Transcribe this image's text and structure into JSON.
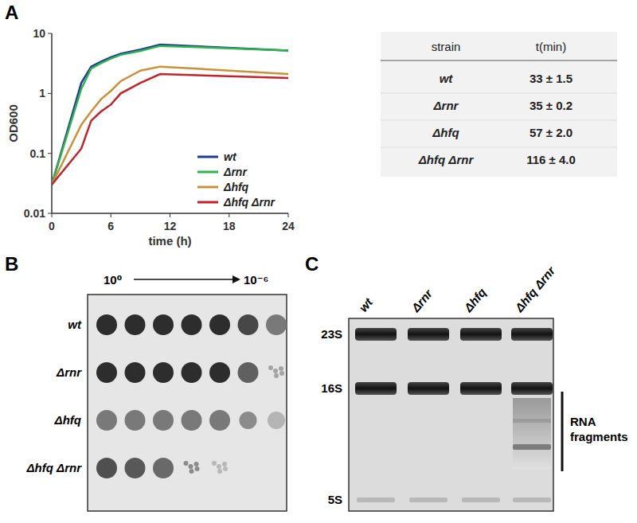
{
  "chart_data": {
    "type": "line",
    "x_label": "time (h)",
    "y_label": "OD600",
    "x": [
      0,
      3,
      4,
      5,
      6,
      7,
      9,
      11,
      24
    ],
    "series": [
      {
        "name": "wt",
        "color": "#1f3a9e",
        "values": [
          0.03,
          1.5,
          2.8,
          3.4,
          4.0,
          4.6,
          5.4,
          6.5,
          5.2
        ]
      },
      {
        "name": "Δrnr",
        "color": "#2fb34a",
        "values": [
          0.03,
          1.2,
          2.6,
          3.2,
          3.8,
          4.4,
          5.1,
          6.2,
          5.2
        ]
      },
      {
        "name": "Δhfq",
        "color": "#c8913a",
        "values": [
          0.03,
          0.3,
          0.5,
          0.8,
          1.1,
          1.6,
          2.4,
          2.8,
          2.1
        ]
      },
      {
        "name": "Δhfq Δrnr",
        "color": "#c0232a",
        "values": [
          0.03,
          0.12,
          0.35,
          0.5,
          0.65,
          1.0,
          1.5,
          2.1,
          1.8
        ]
      }
    ],
    "xlim": [
      0,
      24
    ],
    "xticks": [
      0,
      6,
      12,
      18,
      24
    ],
    "ylim": [
      0.01,
      10
    ],
    "yticks": [
      0.01,
      0.1,
      1,
      10
    ],
    "log": "y",
    "legend": "lower right"
  },
  "panel_labels": [
    "A",
    "B",
    "C"
  ],
  "table": {
    "header": [
      "strain",
      "t(min)"
    ],
    "rows": [
      [
        "wt",
        "33 ± 1.5"
      ],
      [
        "Δrnr",
        "35 ± 0.2"
      ],
      [
        "Δhfq",
        "57 ± 2.0"
      ],
      [
        "Δhfq Δrnr",
        "116 ± 4.0"
      ]
    ]
  },
  "spot_assay": {
    "dilution_start": "10⁰",
    "dilution_end": "10⁻⁶",
    "strains": [
      "wt",
      "Δrnr",
      "Δhfq",
      "Δhfq Δrnr"
    ]
  },
  "gel": {
    "lanes": [
      "wt",
      "Δrnr",
      "Δhfq",
      "Δhfq Δrnr"
    ],
    "bands": [
      "23S",
      "16S",
      "5S"
    ],
    "annotation": "RNA fragments"
  }
}
